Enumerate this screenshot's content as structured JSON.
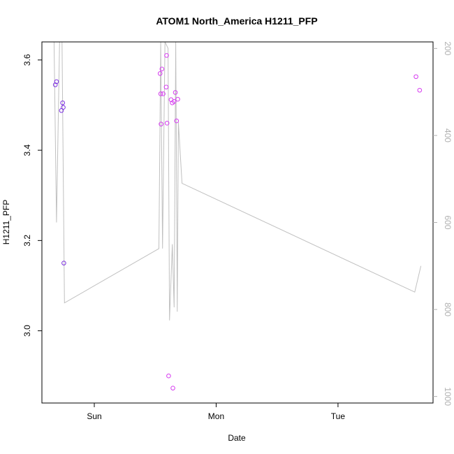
{
  "chart_data": {
    "type": "scatter",
    "title": "ATOM1 North_America H1211_PFP",
    "xlabel": "Date",
    "ylabel": "H1211_PFP",
    "xlim": [
      -0.43,
      2.78
    ],
    "ylim": [
      2.84,
      3.64
    ],
    "x_ticks": [
      {
        "value": 0,
        "label": "Sun"
      },
      {
        "value": 1,
        "label": "Mon"
      },
      {
        "value": 2,
        "label": "Tue"
      }
    ],
    "y_ticks": [
      {
        "value": 3.0,
        "label": "3.0"
      },
      {
        "value": 3.2,
        "label": "3.2"
      },
      {
        "value": 3.4,
        "label": "3.4"
      },
      {
        "value": 3.6,
        "label": "3.6"
      }
    ],
    "y2lim": [
      1015,
      185
    ],
    "y2_ticks": [
      {
        "value": 200,
        "label": "200"
      },
      {
        "value": 400,
        "label": "400"
      },
      {
        "value": 600,
        "label": "600"
      },
      {
        "value": 800,
        "label": "800"
      },
      {
        "value": 1000,
        "label": "1000"
      }
    ],
    "grid": false,
    "colors": {
      "points_early": "#8a2be2",
      "points_late": "#e040fb",
      "line": "#c0c0c0",
      "right_axis": "#b0b0b0"
    },
    "series": [
      {
        "kind": "points",
        "points": [
          {
            "x": -0.32,
            "y": 3.545,
            "color": "#7b2fe0"
          },
          {
            "x": -0.31,
            "y": 3.552,
            "color": "#7b2fe0"
          },
          {
            "x": -0.27,
            "y": 3.488,
            "color": "#7b2fe0"
          },
          {
            "x": -0.26,
            "y": 3.505,
            "color": "#7b2fe0"
          },
          {
            "x": -0.255,
            "y": 3.495,
            "color": "#7b2fe0"
          },
          {
            "x": -0.25,
            "y": 3.15,
            "color": "#7b2fe0"
          },
          {
            "x": 0.54,
            "y": 3.57,
            "color": "#d63cf0"
          },
          {
            "x": 0.545,
            "y": 3.525,
            "color": "#d63cf0"
          },
          {
            "x": 0.548,
            "y": 3.458,
            "color": "#d63cf0"
          },
          {
            "x": 0.555,
            "y": 3.58,
            "color": "#d63cf0"
          },
          {
            "x": 0.565,
            "y": 3.525,
            "color": "#d63cf0"
          },
          {
            "x": 0.59,
            "y": 3.54,
            "color": "#d63cf0"
          },
          {
            "x": 0.593,
            "y": 3.61,
            "color": "#d63cf0"
          },
          {
            "x": 0.597,
            "y": 3.46,
            "color": "#d63cf0"
          },
          {
            "x": 0.61,
            "y": 2.9,
            "color": "#d63cf0"
          },
          {
            "x": 0.63,
            "y": 3.512,
            "color": "#d63cf0"
          },
          {
            "x": 0.64,
            "y": 3.505,
            "color": "#d63cf0"
          },
          {
            "x": 0.655,
            "y": 3.508,
            "color": "#d63cf0"
          },
          {
            "x": 0.645,
            "y": 2.873,
            "color": "#d63cf0"
          },
          {
            "x": 0.665,
            "y": 3.528,
            "color": "#d63cf0"
          },
          {
            "x": 0.675,
            "y": 3.465,
            "color": "#d63cf0"
          },
          {
            "x": 0.685,
            "y": 3.513,
            "color": "#d63cf0"
          },
          {
            "x": 2.64,
            "y": 3.563,
            "color": "#d63cf0"
          },
          {
            "x": 2.67,
            "y": 3.533,
            "color": "#d63cf0"
          }
        ]
      },
      {
        "kind": "line",
        "axis": "right",
        "points": [
          {
            "x": -0.33,
            "y": 185
          },
          {
            "x": -0.31,
            "y": 600
          },
          {
            "x": -0.285,
            "y": 185
          },
          {
            "x": -0.265,
            "y": 185
          },
          {
            "x": -0.245,
            "y": 785
          },
          {
            "x": 0.53,
            "y": 660
          },
          {
            "x": 0.545,
            "y": 185
          },
          {
            "x": 0.56,
            "y": 660
          },
          {
            "x": 0.58,
            "y": 185
          },
          {
            "x": 0.605,
            "y": 200
          },
          {
            "x": 0.617,
            "y": 825
          },
          {
            "x": 0.64,
            "y": 650
          },
          {
            "x": 0.655,
            "y": 795
          },
          {
            "x": 0.668,
            "y": 185
          },
          {
            "x": 0.681,
            "y": 805
          },
          {
            "x": 0.69,
            "y": 370
          },
          {
            "x": 0.72,
            "y": 510
          },
          {
            "x": 2.63,
            "y": 760
          },
          {
            "x": 2.68,
            "y": 700
          }
        ]
      }
    ]
  }
}
